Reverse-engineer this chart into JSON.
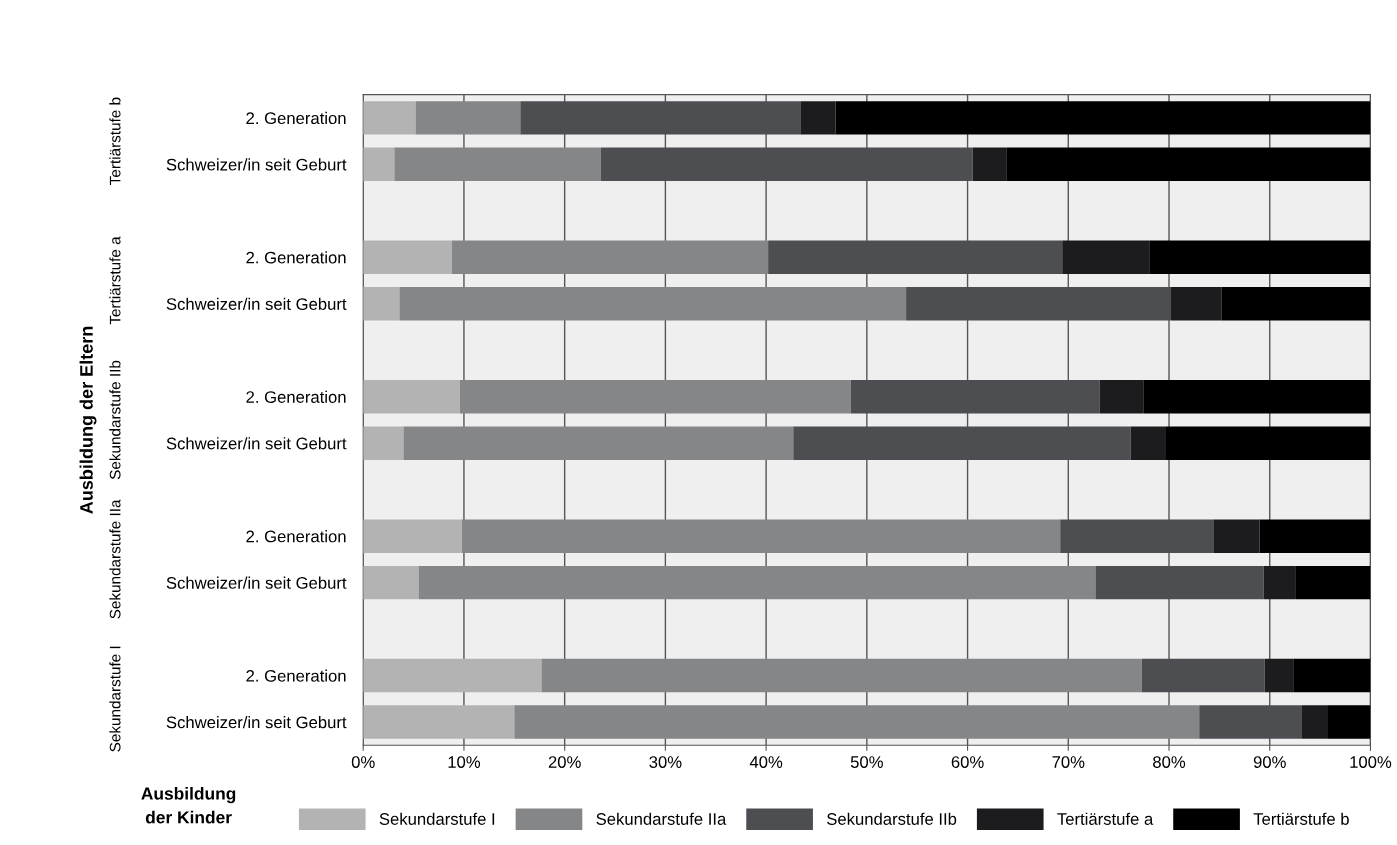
{
  "chart_data": {
    "type": "bar",
    "orientation": "horizontal",
    "stacked": true,
    "categories": [
      "2. Generation",
      "Schweizer/in seit Geburt",
      null,
      "2. Generation",
      "Schweizer/in seit Geburt",
      null,
      "2. Generation",
      "Schweizer/in seit Geburt",
      null,
      "2. Generation",
      "Schweizer/in seit Geburt",
      null,
      "2. Generation",
      "Schweizer/in seit Geburt"
    ],
    "series": [
      {
        "name": "Sekundarstufe I",
        "color": "#b3b3b3",
        "values": [
          5.2,
          3.1,
          null,
          8.8,
          3.6,
          null,
          9.6,
          4.0,
          null,
          9.8,
          5.5,
          null,
          17.7,
          15.0
        ]
      },
      {
        "name": "Sekundarstufe IIa",
        "color": "#858687",
        "values": [
          10.4,
          20.5,
          null,
          31.4,
          50.3,
          null,
          38.8,
          38.7,
          null,
          59.4,
          67.2,
          null,
          59.6,
          68.0
        ]
      },
      {
        "name": "Sekundarstufe IIb",
        "color": "#4c4e52",
        "values": [
          27.8,
          36.9,
          null,
          29.2,
          26.3,
          null,
          24.7,
          33.5,
          null,
          15.2,
          16.7,
          null,
          12.2,
          10.2
        ]
      },
      {
        "name": "Tertiärstufe a",
        "color": "#1c1c1e",
        "values": [
          3.5,
          3.4,
          null,
          8.7,
          5.0,
          null,
          4.4,
          3.5,
          null,
          4.6,
          3.2,
          null,
          2.9,
          2.5
        ]
      },
      {
        "name": "Tertiärstufe b",
        "color": "#000000",
        "values": [
          53.1,
          36.1,
          null,
          21.9,
          14.8,
          null,
          22.5,
          20.3,
          null,
          11.0,
          7.4,
          null,
          7.6,
          4.3
        ]
      }
    ],
    "xlim": [
      0,
      100
    ],
    "xticks": [
      {
        "value": 0,
        "label": "0%"
      },
      {
        "value": 10,
        "label": "10%"
      },
      {
        "value": 20,
        "label": "20%"
      },
      {
        "value": 30,
        "label": "30%"
      },
      {
        "value": 40,
        "label": "40%"
      },
      {
        "value": 50,
        "label": "50%"
      },
      {
        "value": 60,
        "label": "60%"
      },
      {
        "value": 70,
        "label": "70%"
      },
      {
        "value": 80,
        "label": "80%"
      },
      {
        "value": 90,
        "label": "90%"
      },
      {
        "value": 100,
        "label": "100%"
      }
    ],
    "ylabel": "Ausbildung der Eltern",
    "annotations": [
      "Tertiärstufe b",
      "Tertiärstufe a",
      "Sekundarstufe IIb",
      "Sekundarstufe IIa",
      "Sekundarstufe I"
    ],
    "legend_title": "Ausbildung\nder Kinder",
    "legend": "bottom",
    "grid": "x"
  }
}
